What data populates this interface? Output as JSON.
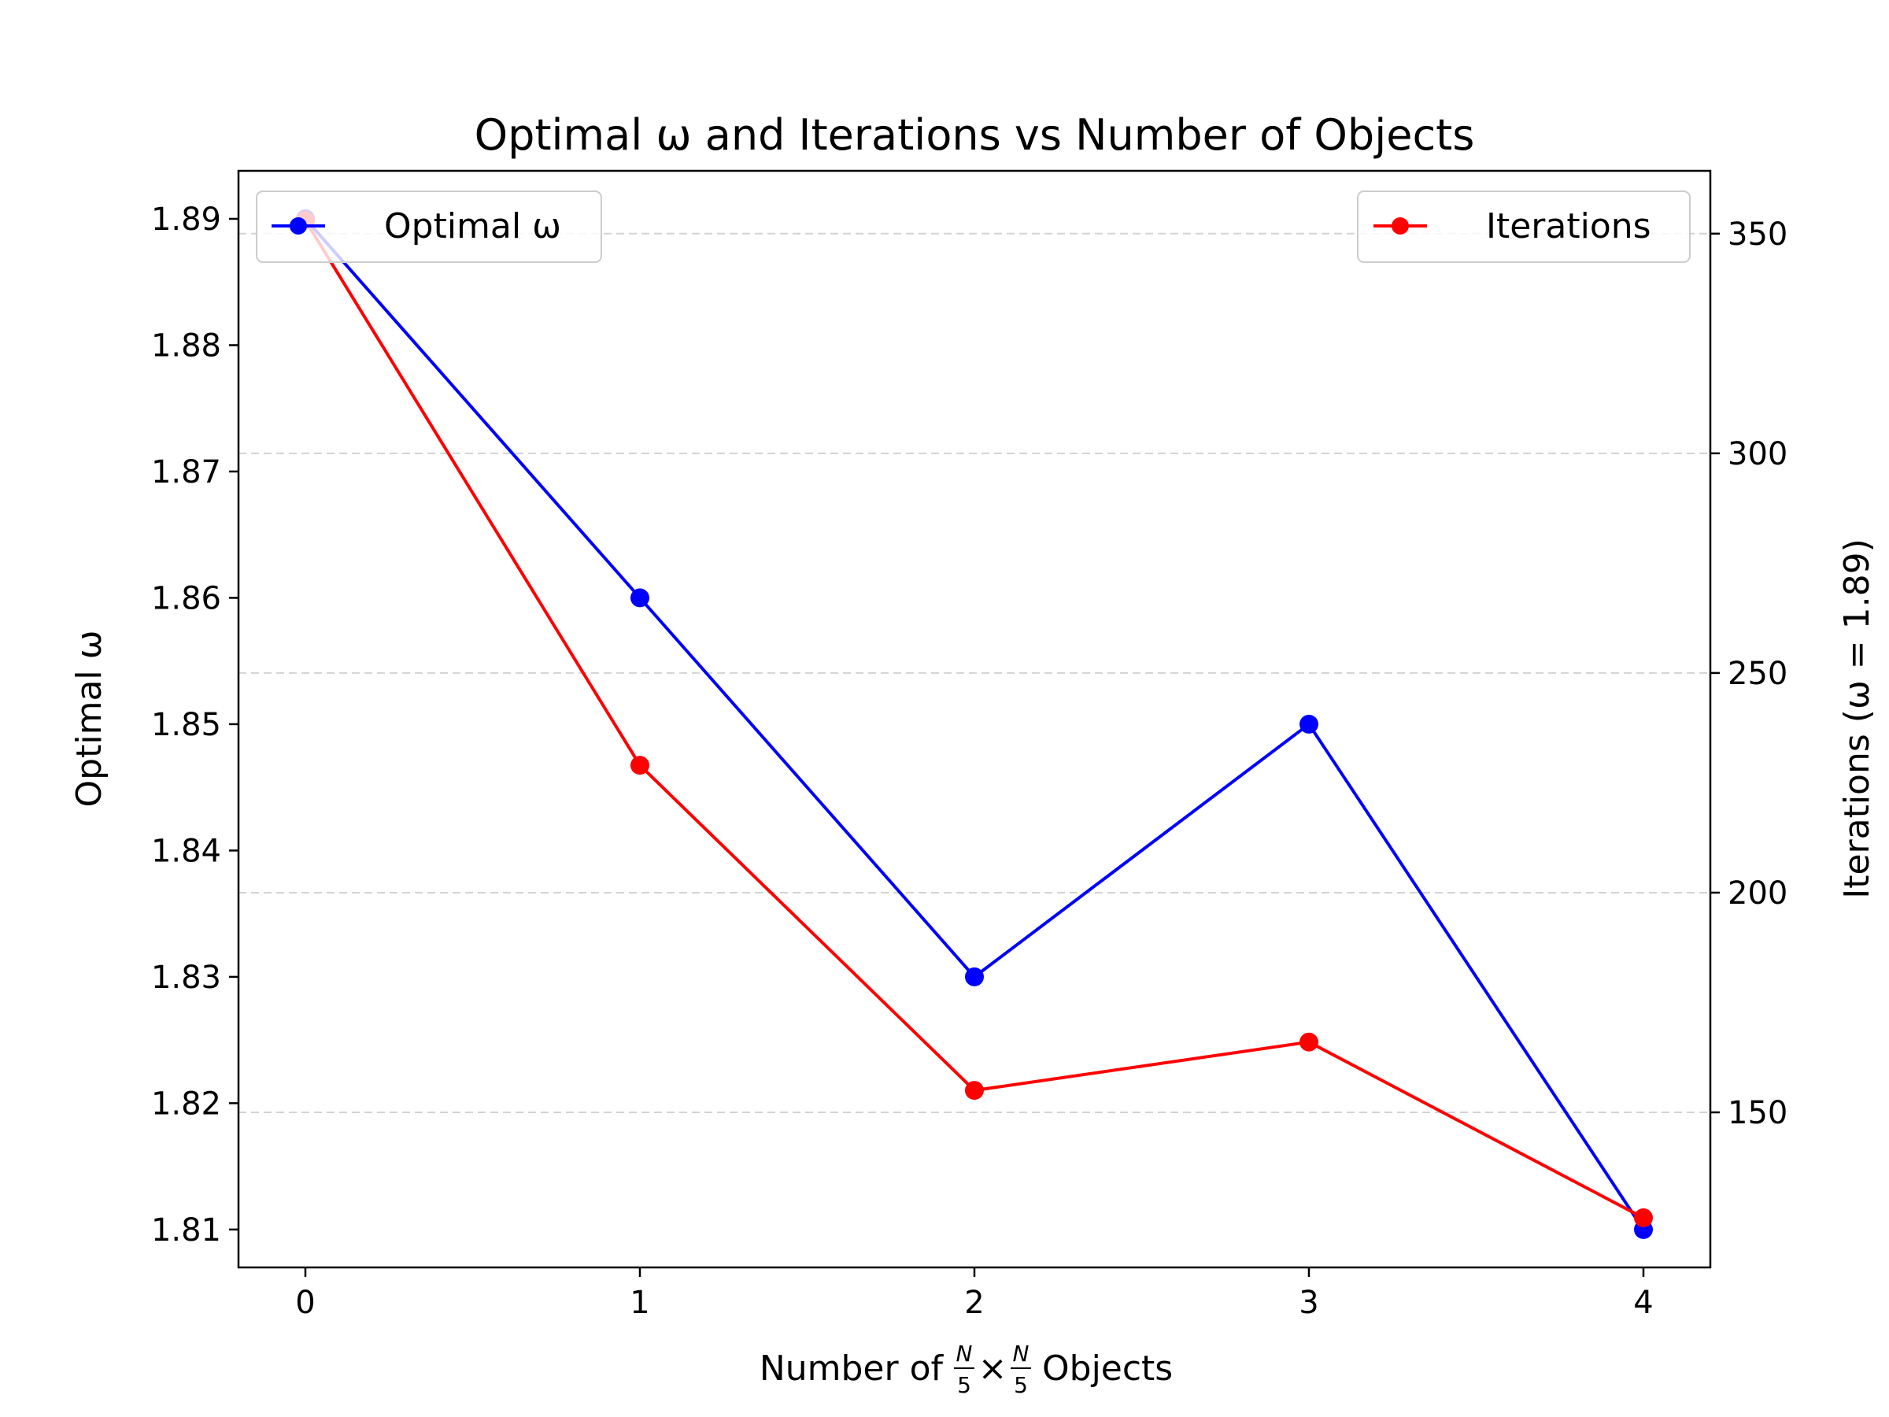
{
  "chart_data": {
    "type": "line",
    "title": "Optimal ω and Iterations vs Number of Objects",
    "xlabel": {
      "prefix": "Number of",
      "frac_num": "N",
      "frac_den": "5",
      "times": "×",
      "suffix": "Objects"
    },
    "ylabel_left": "Optimal ω",
    "ylabel_right": "Iterations (ω = 1.89)",
    "x": [
      0,
      1,
      2,
      3,
      4
    ],
    "x_ticks": [
      "0",
      "1",
      "2",
      "3",
      "4"
    ],
    "xlim": [
      -0.2,
      4.2
    ],
    "series": [
      {
        "name": "Optimal ω",
        "axis": "left",
        "color": "#0000ff",
        "values": [
          1.89,
          1.86,
          1.83,
          1.85,
          1.81
        ]
      },
      {
        "name": "Iterations",
        "axis": "right",
        "color": "#ff0000",
        "values": [
          353,
          229,
          155,
          166,
          126
        ]
      }
    ],
    "y_left": {
      "lim": [
        1.807,
        1.8938
      ],
      "ticks": [
        1.81,
        1.82,
        1.83,
        1.84,
        1.85,
        1.86,
        1.87,
        1.88,
        1.89
      ],
      "tick_labels": [
        "1.81",
        "1.82",
        "1.83",
        "1.84",
        "1.85",
        "1.86",
        "1.87",
        "1.88",
        "1.89"
      ],
      "label_color": "#0000ff"
    },
    "y_right": {
      "lim": [
        114.7,
        364.3
      ],
      "ticks": [
        150,
        200,
        250,
        300,
        350
      ],
      "tick_labels": [
        "150",
        "200",
        "250",
        "300",
        "350"
      ],
      "label_color": "#ff0000"
    },
    "grid": {
      "axis": "right-y",
      "style": "dashed",
      "color": "#d3d3d3"
    },
    "legend_left_placement": "upper-left",
    "legend_right_placement": "upper-right"
  }
}
